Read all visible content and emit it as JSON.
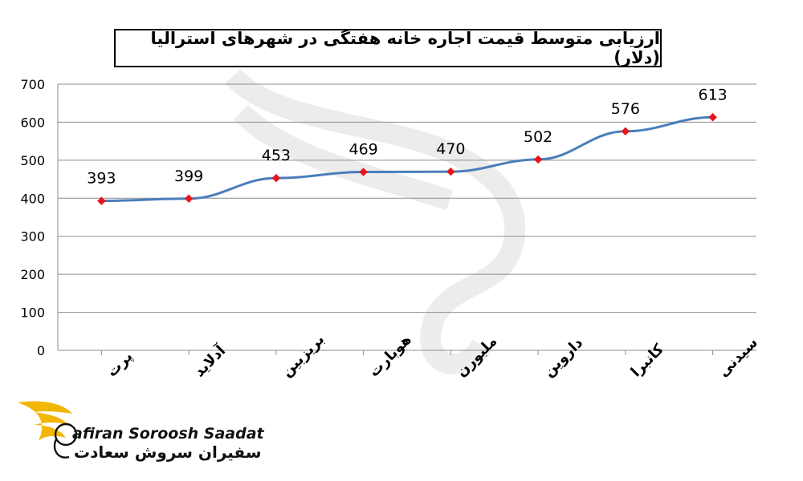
{
  "chart_data": {
    "type": "line",
    "title": "ارزیابی متوسط قیمت اجاره خانه هفتگی در شهرهای استرالیا (دلار)",
    "categories": [
      "پرت",
      "آدلاید",
      "بریزبین",
      "هوبارت",
      "ملبورن",
      "داروین",
      "کانبرا",
      "سیدنی"
    ],
    "values": [
      393,
      399,
      453,
      469,
      470,
      502,
      576,
      613
    ],
    "ylim": [
      0,
      700
    ],
    "yticks": [
      0,
      100,
      200,
      300,
      400,
      500,
      600,
      700
    ],
    "grid": true,
    "line_color": "#4a7ebb",
    "marker_color": "#e8141b"
  },
  "branding": {
    "latin": "afiran Soroosh Saadat",
    "persian": "سفیران سروش سعادت"
  }
}
